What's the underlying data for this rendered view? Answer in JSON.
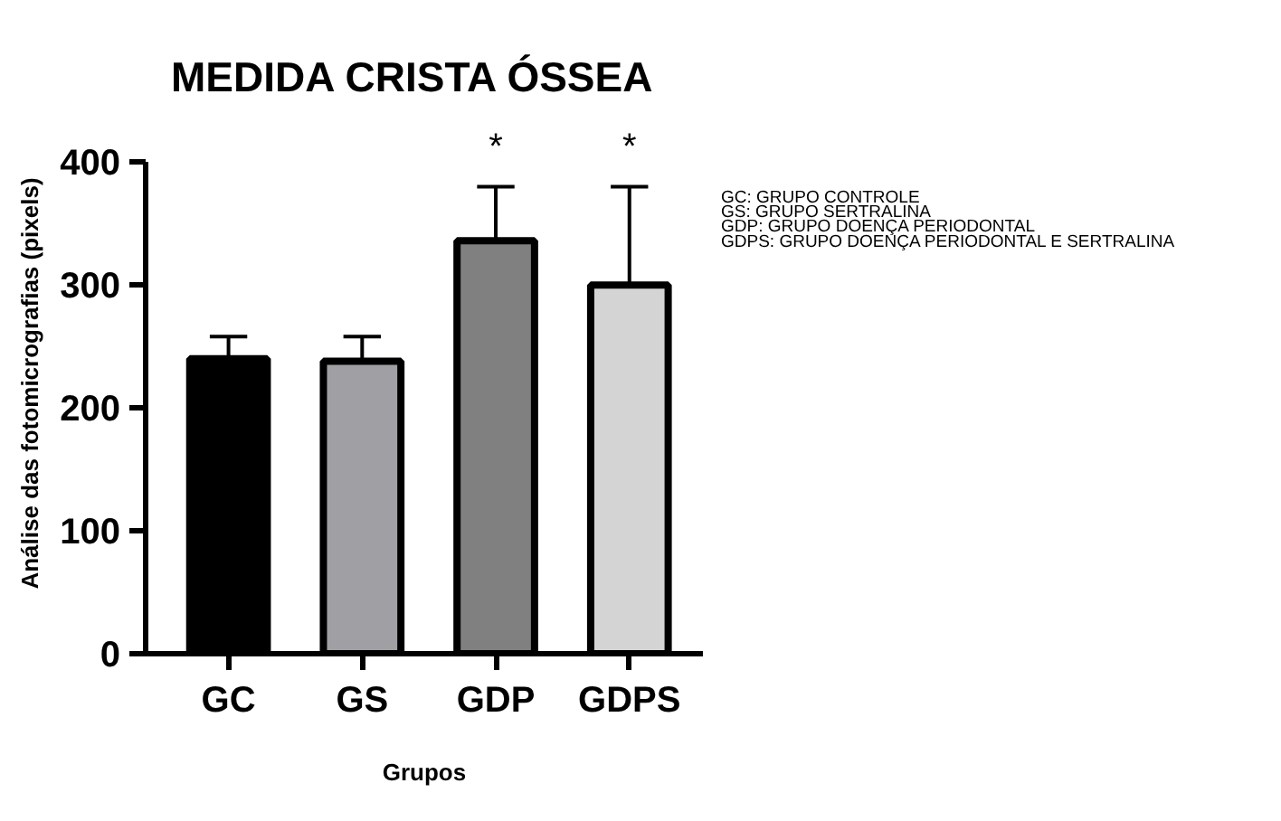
{
  "chart_data": {
    "type": "bar",
    "title": "MEDIDA CRISTA ÓSSEA",
    "xlabel": "Grupos",
    "ylabel": "Análise das fotomicrografias (pixels)",
    "categories": [
      "GC",
      "GS",
      "GDP",
      "GDPS"
    ],
    "values": [
      240,
      238,
      336,
      300
    ],
    "colors": [
      "#000000",
      "#a0a0a4",
      "#808080",
      "#d4d4d4"
    ],
    "errors": [
      [
        240,
        258
      ],
      [
        238,
        258
      ],
      [
        336,
        380
      ],
      [
        300,
        380
      ]
    ],
    "ylim": [
      0,
      400
    ],
    "yticks": [
      0,
      100,
      200,
      300,
      400
    ],
    "grid": false,
    "annotations": [
      {
        "text": "*",
        "x": "GDP",
        "y": 380
      },
      {
        "text": "*",
        "x": "GDPS",
        "y": 380
      },
      "GC: GRUPO CONTROLE",
      "GS: GRUPO SERTRALINA",
      "GDP: GRUPO DOENÇA PERIODONTAL",
      "GDPS: GRUPO DOENÇA PERIODONTAL E SERTRALINA"
    ]
  }
}
